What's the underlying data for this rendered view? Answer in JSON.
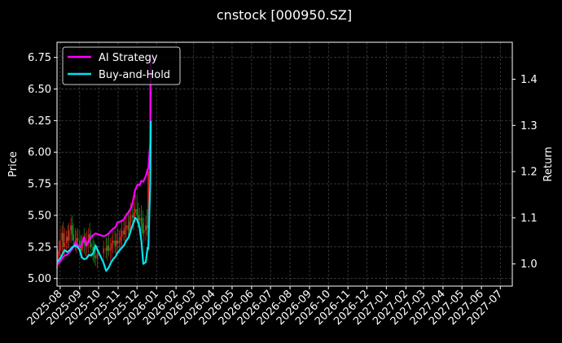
{
  "chart_data": {
    "type": "line",
    "title": "cnstock [000950.SZ]",
    "ylabel_left": "Price",
    "ylabel_right": "Return",
    "grid": true,
    "legend_position": "top-left",
    "x_ticks": [
      "2025-08",
      "2025-09",
      "2025-10",
      "2025-11",
      "2025-12",
      "2026-01",
      "2026-02",
      "2026-03",
      "2026-04",
      "2026-05",
      "2026-06",
      "2026-07",
      "2026-08",
      "2026-09",
      "2026-10",
      "2026-11",
      "2026-12",
      "2027-01",
      "2027-02",
      "2027-03",
      "2027-04",
      "2027-05",
      "2027-06",
      "2027-07"
    ],
    "y_ticks_left": [
      "5.00",
      "5.25",
      "5.50",
      "5.75",
      "6.00",
      "6.25",
      "6.50",
      "6.75"
    ],
    "y_ticks_right": [
      "1.0",
      "1.1",
      "1.2",
      "1.3",
      "1.4"
    ],
    "xlim": [
      "2025-07-27",
      "2027-07-20"
    ],
    "ylim_left": [
      4.94,
      6.87
    ],
    "ylim_right": [
      0.952,
      1.48
    ],
    "candles": {
      "dates": [
        "2025-07-28",
        "2025-07-30",
        "2025-08-01",
        "2025-08-04",
        "2025-08-06",
        "2025-08-08",
        "2025-08-11",
        "2025-08-13",
        "2025-08-15",
        "2025-08-18",
        "2025-08-20",
        "2025-08-22",
        "2025-08-25",
        "2025-08-27",
        "2025-08-29",
        "2025-09-01",
        "2025-09-03",
        "2025-09-05",
        "2025-09-08",
        "2025-09-10",
        "2025-09-12",
        "2025-09-15",
        "2025-09-17",
        "2025-09-19",
        "2025-09-22",
        "2025-09-24",
        "2025-09-26",
        "2025-09-29",
        "2025-10-09",
        "2025-10-13",
        "2025-10-15",
        "2025-10-17",
        "2025-10-20",
        "2025-10-22",
        "2025-10-24",
        "2025-10-27",
        "2025-10-29",
        "2025-10-31",
        "2025-11-03",
        "2025-11-05",
        "2025-11-07",
        "2025-11-10",
        "2025-11-12",
        "2025-11-14",
        "2025-11-17",
        "2025-11-19",
        "2025-11-21",
        "2025-11-24",
        "2025-11-26",
        "2025-11-28",
        "2025-12-01",
        "2025-12-03",
        "2025-12-05",
        "2025-12-08",
        "2025-12-10",
        "2025-12-12",
        "2025-12-15",
        "2025-12-17",
        "2025-12-19",
        "2025-12-22"
      ],
      "open": [
        5.12,
        5.18,
        5.22,
        5.3,
        5.36,
        5.25,
        5.28,
        5.33,
        5.3,
        5.38,
        5.42,
        5.35,
        5.3,
        5.28,
        5.32,
        5.3,
        5.24,
        5.22,
        5.3,
        5.28,
        5.26,
        5.3,
        5.35,
        5.28,
        5.25,
        5.22,
        5.18,
        5.16,
        5.2,
        5.24,
        5.22,
        5.26,
        5.22,
        5.24,
        5.28,
        5.3,
        5.26,
        5.3,
        5.28,
        5.3,
        5.33,
        5.38,
        5.35,
        5.4,
        5.42,
        5.38,
        5.45,
        5.5,
        5.48,
        5.52,
        5.55,
        5.5,
        5.46,
        5.48,
        5.44,
        5.36,
        5.38,
        5.42,
        5.4,
        5.85
      ],
      "high": [
        5.24,
        5.3,
        5.4,
        5.42,
        5.45,
        5.4,
        5.38,
        5.42,
        5.44,
        5.48,
        5.5,
        5.44,
        5.4,
        5.38,
        5.4,
        5.38,
        5.34,
        5.35,
        5.4,
        5.36,
        5.38,
        5.4,
        5.44,
        5.38,
        5.34,
        5.3,
        5.28,
        5.26,
        5.3,
        5.33,
        5.32,
        5.35,
        5.32,
        5.34,
        5.38,
        5.38,
        5.36,
        5.4,
        5.38,
        5.4,
        5.45,
        5.48,
        5.46,
        5.52,
        5.54,
        5.52,
        5.6,
        5.62,
        5.6,
        5.66,
        5.66,
        5.6,
        5.56,
        5.58,
        5.54,
        5.48,
        5.5,
        5.55,
        5.52,
        6.8
      ],
      "low": [
        5.08,
        5.1,
        5.18,
        5.2,
        5.22,
        5.18,
        5.22,
        5.24,
        5.24,
        5.28,
        5.3,
        5.26,
        5.22,
        5.2,
        5.24,
        5.2,
        5.16,
        5.15,
        5.2,
        5.18,
        5.16,
        5.2,
        5.24,
        5.18,
        5.14,
        5.12,
        5.1,
        5.08,
        5.12,
        5.16,
        5.14,
        5.18,
        5.14,
        5.16,
        5.2,
        5.2,
        5.18,
        5.22,
        5.2,
        5.22,
        5.26,
        5.3,
        5.28,
        5.32,
        5.34,
        5.32,
        5.38,
        5.4,
        5.38,
        5.44,
        5.44,
        5.4,
        5.36,
        5.38,
        5.34,
        5.28,
        5.3,
        5.34,
        5.32,
        5.78
      ],
      "close": [
        5.18,
        5.22,
        5.3,
        5.36,
        5.25,
        5.28,
        5.33,
        5.3,
        5.38,
        5.42,
        5.35,
        5.3,
        5.28,
        5.32,
        5.3,
        5.24,
        5.22,
        5.3,
        5.28,
        5.26,
        5.3,
        5.35,
        5.28,
        5.25,
        5.22,
        5.18,
        5.16,
        5.2,
        5.24,
        5.22,
        5.26,
        5.22,
        5.24,
        5.28,
        5.3,
        5.26,
        5.3,
        5.28,
        5.3,
        5.33,
        5.38,
        5.35,
        5.4,
        5.42,
        5.38,
        5.45,
        5.5,
        5.48,
        5.52,
        5.55,
        5.5,
        5.46,
        5.48,
        5.44,
        5.36,
        5.38,
        5.42,
        5.4,
        5.85,
        6.7
      ]
    },
    "series": [
      {
        "name": "AI Strategy",
        "color": "#ff00ff",
        "axis": "right",
        "x": [
          "2025-07-28",
          "2025-08-01",
          "2025-08-05",
          "2025-08-08",
          "2025-08-12",
          "2025-08-15",
          "2025-08-20",
          "2025-08-25",
          "2025-08-29",
          "2025-09-03",
          "2025-09-08",
          "2025-09-12",
          "2025-09-17",
          "2025-09-22",
          "2025-09-26",
          "2025-10-09",
          "2025-10-13",
          "2025-10-17",
          "2025-10-21",
          "2025-10-24",
          "2025-10-28",
          "2025-10-31",
          "2025-11-05",
          "2025-11-10",
          "2025-11-14",
          "2025-11-18",
          "2025-11-21",
          "2025-11-24",
          "2025-11-28",
          "2025-12-02",
          "2025-12-05",
          "2025-12-08",
          "2025-12-11",
          "2025-12-15",
          "2025-12-18",
          "2025-12-19",
          "2025-12-22",
          "2025-12-23"
        ],
        "values": [
          1.0,
          1.005,
          1.014,
          1.018,
          1.02,
          1.024,
          1.032,
          1.046,
          1.04,
          1.036,
          1.058,
          1.04,
          1.054,
          1.062,
          1.066,
          1.06,
          1.062,
          1.066,
          1.072,
          1.076,
          1.08,
          1.09,
          1.092,
          1.096,
          1.106,
          1.112,
          1.12,
          1.132,
          1.16,
          1.172,
          1.17,
          1.18,
          1.178,
          1.19,
          1.205,
          1.205,
          1.26,
          1.45
        ]
      },
      {
        "name": "Buy-and-Hold",
        "color": "#00e5ee",
        "axis": "right",
        "x": [
          "2025-07-28",
          "2025-08-01",
          "2025-08-05",
          "2025-08-08",
          "2025-08-12",
          "2025-08-15",
          "2025-08-20",
          "2025-08-25",
          "2025-08-29",
          "2025-09-01",
          "2025-09-04",
          "2025-09-08",
          "2025-09-12",
          "2025-09-16",
          "2025-09-19",
          "2025-09-23",
          "2025-09-26",
          "2025-10-09",
          "2025-10-13",
          "2025-10-17",
          "2025-10-21",
          "2025-10-24",
          "2025-10-28",
          "2025-10-31",
          "2025-11-05",
          "2025-11-10",
          "2025-11-14",
          "2025-11-18",
          "2025-11-21",
          "2025-11-24",
          "2025-11-28",
          "2025-12-02",
          "2025-12-05",
          "2025-12-08",
          "2025-12-11",
          "2025-12-15",
          "2025-12-18",
          "2025-12-19",
          "2025-12-22",
          "2025-12-23"
        ],
        "values": [
          1.005,
          1.012,
          1.022,
          1.03,
          1.026,
          1.028,
          1.036,
          1.04,
          1.036,
          1.03,
          1.015,
          1.01,
          1.012,
          1.02,
          1.018,
          1.025,
          1.04,
          1.002,
          0.985,
          0.992,
          1.004,
          1.01,
          1.016,
          1.024,
          1.032,
          1.04,
          1.05,
          1.058,
          1.072,
          1.084,
          1.1,
          1.094,
          1.08,
          1.05,
          1.0,
          1.004,
          1.036,
          1.032,
          1.17,
          1.31
        ]
      }
    ]
  }
}
